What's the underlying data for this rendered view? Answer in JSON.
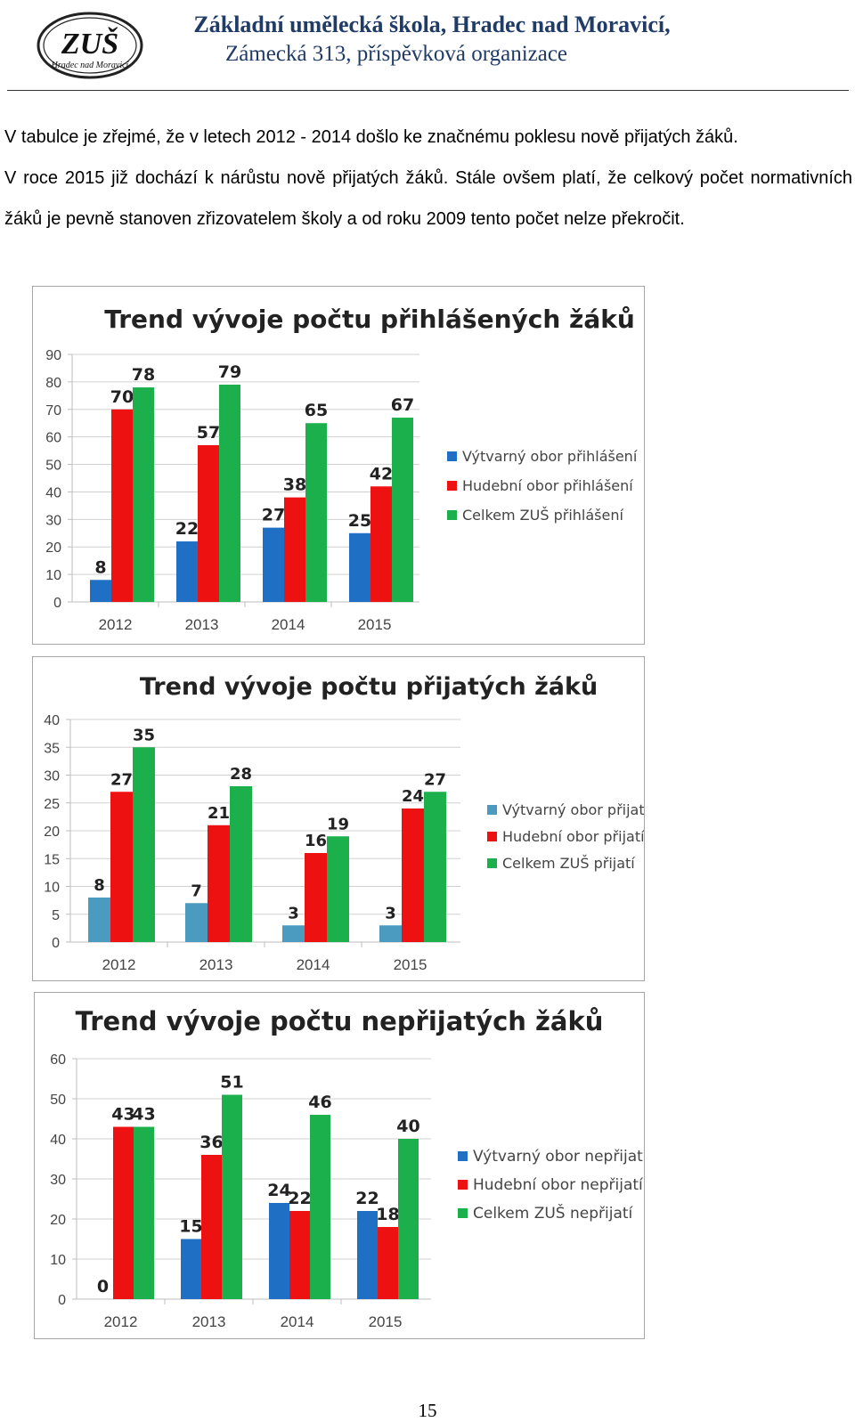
{
  "header": {
    "logo_text": "ZUŠ",
    "logo_subtext": "Hradec nad Moravicí",
    "school_name": "Základní umělecká škola, Hradec nad Moravicí,",
    "school_address": "Zámecká 313, příspěvková organizace"
  },
  "paragraph": {
    "line1": "V tabulce je zřejmé, že v letech 2012 - 2014 došlo ke značnému poklesu nově přijatých žáků.",
    "line2": "V roce 2015 již dochází k nárůstu nově přijatých žáků. Stále ovšem platí, že celkový počet normativních žáků je pevně stanoven zřizovatelem školy a od roku 2009 tento počet nelze překročit."
  },
  "chart_data": [
    {
      "type": "bar",
      "title": "Trend vývoje počtu přihlášených žáků",
      "categories": [
        "2012",
        "2013",
        "2014",
        "2015"
      ],
      "ylim": [
        0,
        90
      ],
      "yticks": [
        0,
        10,
        20,
        30,
        40,
        50,
        60,
        70,
        80,
        90
      ],
      "grid": true,
      "legend_position": "right",
      "series": [
        {
          "name": "Výtvarný obor přihlášení",
          "values": [
            8,
            22,
            27,
            25
          ],
          "color": "#1f6fc5"
        },
        {
          "name": "Hudební obor přihlášení",
          "values": [
            70,
            57,
            38,
            42
          ],
          "color": "#ee1111"
        },
        {
          "name": "Celkem ZUŠ přihlášení",
          "values": [
            78,
            79,
            65,
            67
          ],
          "color": "#1cb04c"
        }
      ]
    },
    {
      "type": "bar",
      "title": "Trend vývoje počtu přijatých žáků",
      "categories": [
        "2012",
        "2013",
        "2014",
        "2015"
      ],
      "ylim": [
        0,
        40
      ],
      "yticks": [
        0,
        5,
        10,
        15,
        20,
        25,
        30,
        35,
        40
      ],
      "grid": true,
      "legend_position": "right",
      "series": [
        {
          "name": "Výtvarný obor přijatí",
          "values": [
            8,
            7,
            3,
            3
          ],
          "color": "#4a9bbf"
        },
        {
          "name": "Hudební obor přijatí",
          "values": [
            27,
            21,
            16,
            24
          ],
          "color": "#ee1111"
        },
        {
          "name": "Celkem ZUŠ přijatí",
          "values": [
            35,
            28,
            19,
            27
          ],
          "color": "#1cb04c"
        }
      ]
    },
    {
      "type": "bar",
      "title": "Trend vývoje počtu nepřijatých žáků",
      "categories": [
        "2012",
        "2013",
        "2014",
        "2015"
      ],
      "ylim": [
        0,
        60
      ],
      "yticks": [
        0,
        10,
        20,
        30,
        40,
        50,
        60
      ],
      "grid": true,
      "legend_position": "right",
      "series": [
        {
          "name": "Výtvarný obor nepřijatí",
          "values": [
            0,
            15,
            24,
            22
          ],
          "color": "#1f6fc5"
        },
        {
          "name": "Hudební obor nepřijatí",
          "values": [
            43,
            36,
            22,
            18
          ],
          "color": "#ee1111"
        },
        {
          "name": "Celkem ZUŠ nepřijatí",
          "values": [
            43,
            51,
            46,
            40
          ],
          "color": "#1cb04c"
        }
      ]
    }
  ],
  "footer": {
    "page_number": "15"
  }
}
